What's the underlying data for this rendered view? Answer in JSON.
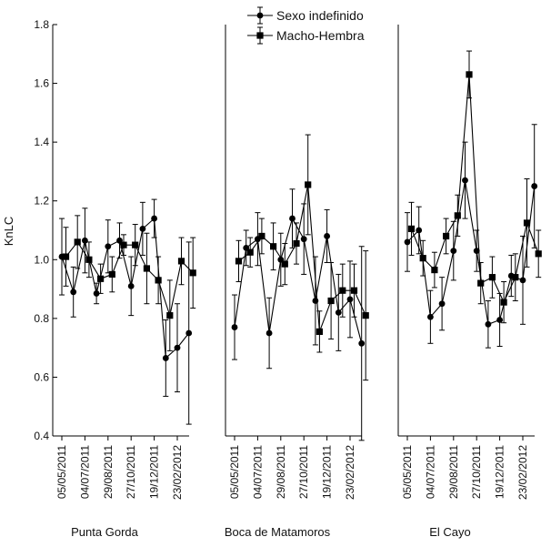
{
  "chart_data": {
    "type": "line",
    "ylabel": "KnLC",
    "ylim": [
      0.4,
      1.8
    ],
    "yticks": [
      "0.4",
      "0.6",
      "0.8",
      "1.0",
      "1.2",
      "1.4",
      "1.6",
      "1.8"
    ],
    "xticklabels": [
      "05/05/2011",
      "04/07/2011",
      "29/08/2011",
      "27/10/2011",
      "19/12/2011",
      "23/02/2012"
    ],
    "legend": {
      "placement": "top-center",
      "items": [
        {
          "label": "Sexo indefinido",
          "marker": "circle"
        },
        {
          "label": "Macho-Hembra",
          "marker": "square"
        }
      ]
    },
    "panels": [
      {
        "site": "Punta Gorda",
        "series": [
          {
            "name": "Sexo indefinido",
            "x": [
              0,
              1,
              2,
              3,
              4,
              5,
              6,
              7,
              8,
              9,
              10,
              11,
              12
            ],
            "y": [
              1.01,
              0.89,
              1.065,
              0.885,
              1.045,
              1.065,
              0.91,
              1.105,
              1.14,
              0.665,
              0.7,
              0.75,
              null
            ],
            "err": [
              0.13,
              0.085,
              0.11,
              0.035,
              0.09,
              0.06,
              0.1,
              0.09,
              0.065,
              0.13,
              0.15,
              0.31,
              null
            ]
          },
          {
            "name": "Macho-Hembra",
            "x": [
              0,
              1,
              2,
              3,
              4,
              5,
              6,
              7,
              8,
              9,
              10,
              11,
              12
            ],
            "y": [
              1.01,
              1.06,
              1.0,
              0.935,
              0.95,
              1.05,
              1.05,
              0.97,
              0.93,
              0.81,
              0.995,
              0.955,
              null
            ],
            "err": [
              0.1,
              0.09,
              0.06,
              0.05,
              0.06,
              0.035,
              0.07,
              0.12,
              0.08,
              0.12,
              0.08,
              0.12,
              null
            ]
          }
        ]
      },
      {
        "site": "Boca de Matamoros",
        "series": [
          {
            "name": "Sexo indefinido",
            "x": [
              0,
              1,
              2,
              3,
              4,
              5,
              6,
              7,
              8,
              9,
              10,
              11,
              12
            ],
            "y": [
              0.77,
              1.04,
              1.07,
              0.75,
              1.0,
              1.14,
              1.07,
              0.86,
              1.08,
              0.82,
              0.865,
              0.715,
              null
            ],
            "err": [
              0.11,
              0.06,
              0.09,
              0.12,
              0.09,
              0.1,
              0.12,
              0.15,
              0.09,
              0.13,
              0.13,
              0.33,
              null
            ]
          },
          {
            "name": "Macho-Hembra",
            "x": [
              0,
              1,
              2,
              3,
              4,
              5,
              6,
              7,
              8,
              9,
              10,
              11,
              12
            ],
            "y": [
              0.995,
              1.025,
              1.08,
              1.045,
              0.985,
              1.055,
              1.255,
              0.755,
              0.86,
              0.895,
              0.895,
              0.81,
              null
            ],
            "err": [
              0.07,
              0.05,
              0.06,
              0.08,
              0.07,
              0.07,
              0.17,
              0.07,
              0.13,
              0.09,
              0.09,
              0.22,
              null
            ]
          }
        ]
      },
      {
        "site": "El Cayo",
        "series": [
          {
            "name": "Sexo indefinido",
            "x": [
              0,
              1,
              2,
              3,
              4,
              5,
              6,
              7,
              8,
              9,
              10,
              11,
              12
            ],
            "y": [
              1.06,
              1.1,
              0.805,
              0.85,
              1.03,
              1.27,
              1.03,
              0.78,
              0.795,
              0.945,
              0.93,
              1.25,
              null
            ],
            "err": [
              0.1,
              0.08,
              0.09,
              0.09,
              0.1,
              0.13,
              0.07,
              0.08,
              0.09,
              0.07,
              0.15,
              0.21,
              null
            ]
          },
          {
            "name": "Macho-Hembra",
            "x": [
              0,
              1,
              2,
              3,
              4,
              5,
              6,
              7,
              8,
              9,
              10,
              11,
              12
            ],
            "y": [
              1.105,
              1.005,
              0.965,
              1.08,
              1.15,
              1.63,
              0.92,
              0.94,
              0.855,
              0.94,
              1.125,
              1.02,
              null
            ],
            "err": [
              0.09,
              0.06,
              0.06,
              0.06,
              0.07,
              0.08,
              0.07,
              0.07,
              0.07,
              0.08,
              0.15,
              0.08,
              null
            ]
          }
        ]
      }
    ]
  }
}
